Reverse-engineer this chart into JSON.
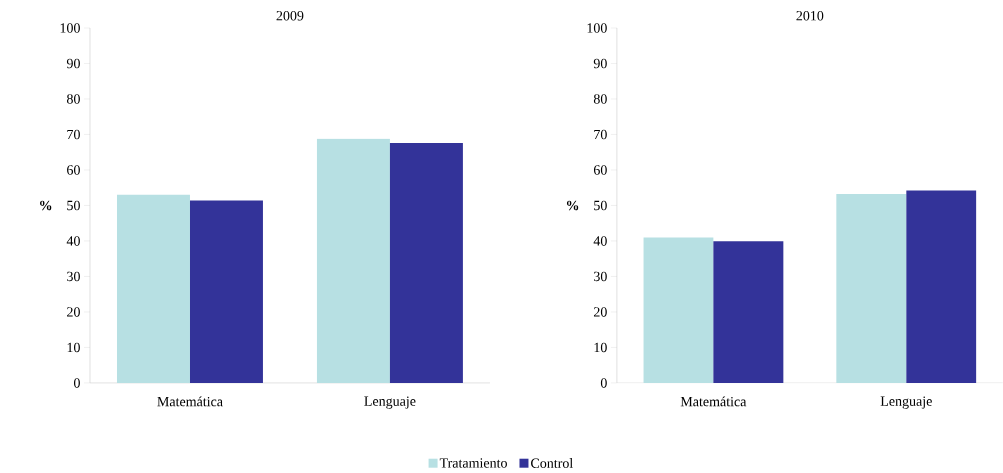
{
  "chart_data": [
    {
      "type": "bar",
      "title": "2009",
      "ylabel": "%",
      "categories": [
        "Matemática",
        "Lenguaje"
      ],
      "series": [
        {
          "name": "Tratamiento",
          "color": "#b7e0e3",
          "values": [
            53,
            68.8
          ]
        },
        {
          "name": "Control",
          "color": "#333399",
          "values": [
            51.4,
            67.6
          ]
        }
      ],
      "ylim": [
        0,
        100
      ],
      "yticks": [
        0,
        10,
        20,
        30,
        40,
        50,
        60,
        70,
        80,
        90,
        100
      ],
      "legend": "bottom"
    },
    {
      "type": "bar",
      "title": "2010",
      "ylabel": "%",
      "categories": [
        "Matemática",
        "Lenguaje"
      ],
      "series": [
        {
          "color": "#b7e0e3",
          "values": [
            41,
            53.2
          ]
        },
        {
          "color": "#333399",
          "values": [
            39.9,
            54.2
          ]
        }
      ],
      "ylim": [
        0,
        100
      ],
      "yticks": [
        0,
        10,
        20,
        30,
        40,
        50,
        60,
        70,
        80,
        90,
        100
      ]
    }
  ]
}
